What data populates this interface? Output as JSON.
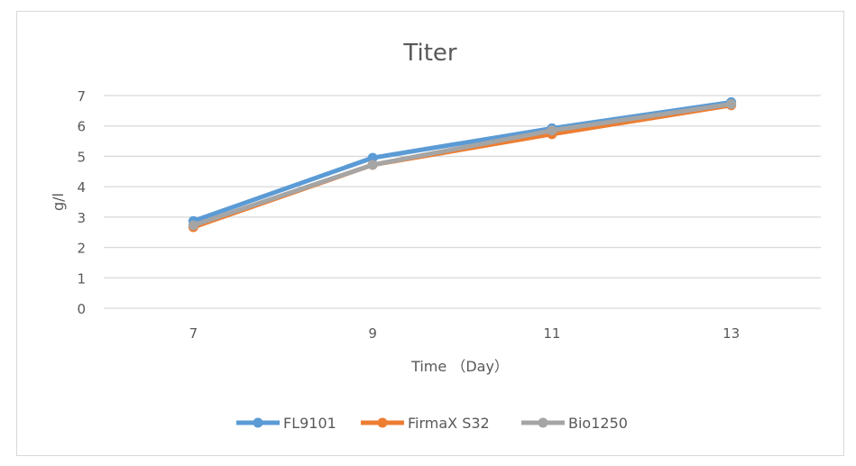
{
  "chart_data": {
    "type": "line",
    "title": "Titer",
    "xlabel": "Time （Day）",
    "ylabel": "g/l",
    "categories": [
      "7",
      "9",
      "11",
      "13"
    ],
    "ylim": [
      0,
      7
    ],
    "yticks": [
      "0",
      "1",
      "2",
      "3",
      "4",
      "5",
      "6",
      "7"
    ],
    "grid": true,
    "legend": "bottom",
    "series": [
      {
        "name": "FL9101",
        "color": "#5b9bd5",
        "values": [
          2.87,
          4.95,
          5.92,
          6.78
        ]
      },
      {
        "name": "FirmaX S32",
        "color": "#ed7d31",
        "values": [
          2.67,
          4.72,
          5.73,
          6.68
        ]
      },
      {
        "name": "Bio1250",
        "color": "#a5a5a5",
        "values": [
          2.73,
          4.72,
          5.85,
          6.72
        ]
      }
    ]
  }
}
